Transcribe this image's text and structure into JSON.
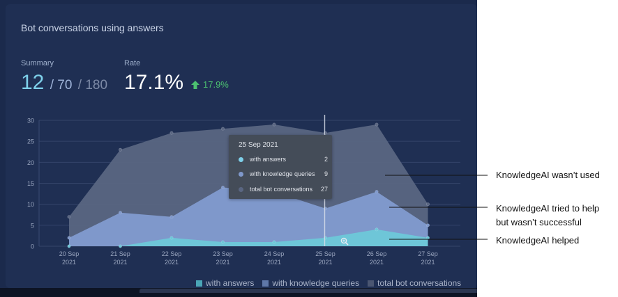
{
  "title": "Bot conversations using answers",
  "summary": {
    "label": "Summary",
    "with_answers": "12",
    "with_knowledge_queries": "/ 70",
    "total": "/ 180"
  },
  "rate": {
    "label": "Rate",
    "value": "17.1%",
    "change": "17.9%",
    "change_direction": "up"
  },
  "chart_data": {
    "type": "area",
    "x": [
      "20 Sep 2021",
      "21 Sep 2021",
      "22 Sep 2021",
      "23 Sep 2021",
      "24 Sep 2021",
      "25 Sep 2021",
      "26 Sep 2021",
      "27 Sep 2021"
    ],
    "x_ticks": [
      [
        "20 Sep",
        "2021"
      ],
      [
        "21 Sep",
        "2021"
      ],
      [
        "22 Sep",
        "2021"
      ],
      [
        "23 Sep",
        "2021"
      ],
      [
        "24 Sep",
        "2021"
      ],
      [
        "25 Sep",
        "2021"
      ],
      [
        "26 Sep",
        "2021"
      ],
      [
        "27 Sep",
        "2021"
      ]
    ],
    "y_ticks": [
      "0",
      "5",
      "10",
      "15",
      "20",
      "25",
      "30"
    ],
    "ylim": [
      0,
      30
    ],
    "grid": true,
    "legend_position": "bottom-right",
    "series": [
      {
        "name": "total bot conversations",
        "color": "#5a6682",
        "values": [
          7,
          23,
          27,
          28,
          29,
          27,
          29,
          10
        ]
      },
      {
        "name": "with knowledge queries",
        "color": "#7f98cb",
        "values": [
          2,
          8,
          7,
          14,
          13,
          9,
          13,
          5
        ]
      },
      {
        "name": "with answers",
        "color": "#6ec6d8",
        "values": [
          0,
          0,
          2,
          1,
          1,
          2,
          4,
          2
        ]
      }
    ]
  },
  "tooltip": {
    "date": "25 Sep 2021",
    "rows": [
      {
        "label": "with answers",
        "value": "2",
        "color": "#7ed0ea"
      },
      {
        "label": "with knowledge queries",
        "value": "9",
        "color": "#7f98cb"
      },
      {
        "label": "total bot conversations",
        "value": "27",
        "color": "#5a6682"
      }
    ]
  },
  "legend": [
    {
      "label": "with answers",
      "color": "#4aa6b6"
    },
    {
      "label": "with knowledge queries",
      "color": "#5f78a8"
    },
    {
      "label": "total bot conversations",
      "color": "#4a5672"
    }
  ],
  "annotations": [
    {
      "lines": [
        "KnowledgeAI wasn’t used"
      ]
    },
    {
      "lines": [
        "KnowledgeAI tried to help",
        "but wasn’t successful"
      ]
    },
    {
      "lines": [
        "KnowledgeAI helped"
      ]
    }
  ]
}
